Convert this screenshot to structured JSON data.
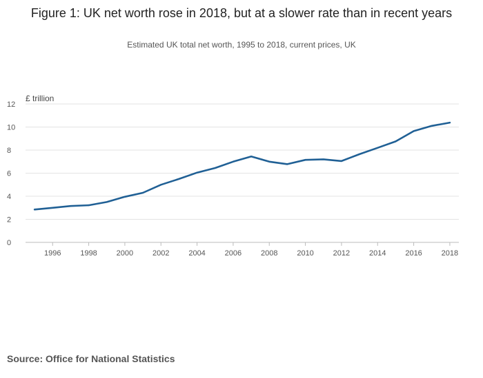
{
  "chart_data": {
    "type": "line",
    "title": "Figure 1: UK net worth rose in 2018, but at a slower rate than in recent years",
    "subtitle": "Estimated UK total net worth, 1995 to 2018, current prices, UK",
    "ylabel": "£ trillion",
    "xlabel": "",
    "ylim": [
      0,
      12
    ],
    "yticks": [
      0,
      2,
      4,
      6,
      8,
      10,
      12
    ],
    "xlim": [
      1994.5,
      2018.5
    ],
    "xticks": [
      1996,
      1998,
      2000,
      2002,
      2004,
      2006,
      2008,
      2010,
      2012,
      2014,
      2016,
      2018
    ],
    "grid": true,
    "series": [
      {
        "name": "UK net worth",
        "color": "#206095",
        "x": [
          1995,
          1996,
          1997,
          1998,
          1999,
          2000,
          2001,
          2002,
          2003,
          2004,
          2005,
          2006,
          2007,
          2008,
          2009,
          2010,
          2011,
          2012,
          2013,
          2014,
          2015,
          2016,
          2017,
          2018
        ],
        "values": [
          2.85,
          3.0,
          3.15,
          3.22,
          3.5,
          3.95,
          4.3,
          5.0,
          5.5,
          6.05,
          6.45,
          7.0,
          7.45,
          7.0,
          6.78,
          7.15,
          7.2,
          7.05,
          7.65,
          8.2,
          8.75,
          9.65,
          10.1,
          10.38
        ]
      }
    ]
  },
  "source": "Source: Office for National Statistics"
}
